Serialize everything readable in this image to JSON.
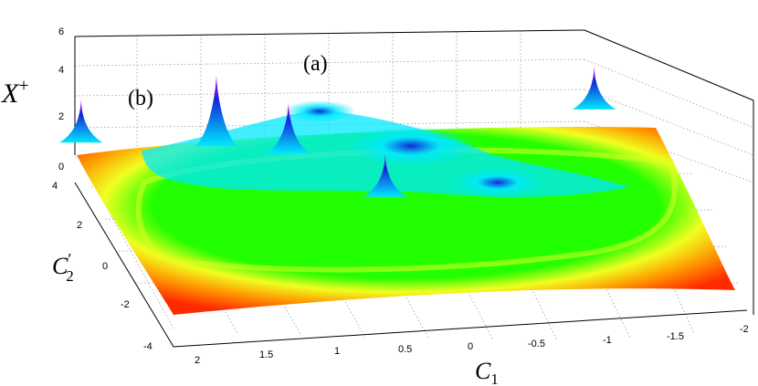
{
  "chart_data": {
    "type": "surface",
    "title": "",
    "xlabel": "C",
    "xlabel_sub": "1",
    "ylabel": "C",
    "ylabel_sub": "2",
    "ylabel_prime": "′",
    "zlabel": "X",
    "zlabel_sup": "+",
    "x_ticks": [
      "2",
      "1.5",
      "1",
      "0.5",
      "0",
      "-0.5",
      "-1",
      "-1.5",
      "-2"
    ],
    "y_ticks": [
      "4",
      "2",
      "0",
      "-2",
      "-4"
    ],
    "z_ticks": [
      "0",
      "2",
      "4",
      "6"
    ],
    "xlim": [
      -2,
      2
    ],
    "ylim": [
      -4,
      4
    ],
    "zlim": [
      0,
      6
    ],
    "grid": true,
    "colormap": "jet",
    "annotations": [
      {
        "text": "(a)"
      },
      {
        "text": "(b)"
      }
    ],
    "peaks": [
      {
        "x": 1.0,
        "y": 3.0,
        "z": 3.4
      },
      {
        "x": 2.0,
        "y": 3.5,
        "z": 2.0
      },
      {
        "x": 0.5,
        "y": 2.5,
        "z": 2.4
      },
      {
        "x": 0.0,
        "y": 0.5,
        "z": 2.0
      },
      {
        "x": -2.0,
        "y": 3.5,
        "z": 2.0
      }
    ],
    "colors": {
      "rim": "#ff2a00",
      "orange": "#ff9a00",
      "yellow": "#f0ff20",
      "green": "#22ff00",
      "cyan": "#00e8ff",
      "blue": "#1428d8",
      "magenta": "#e000ff"
    }
  }
}
